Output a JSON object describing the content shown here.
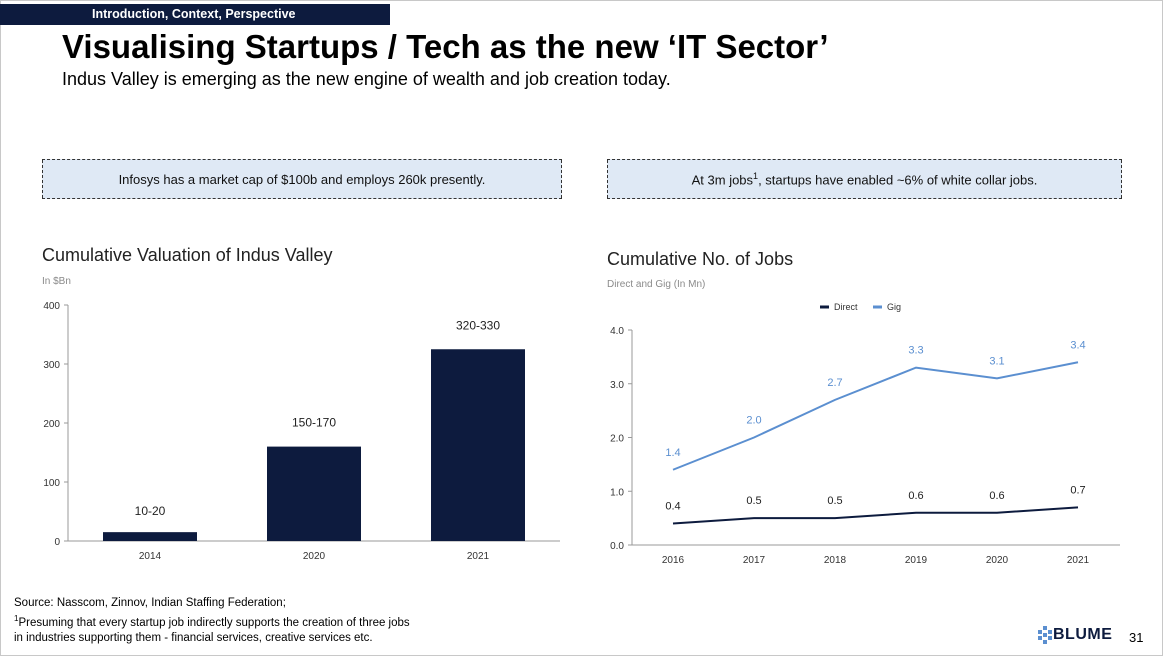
{
  "header": {
    "section_tag": "Introduction, Context, Perspective",
    "title": "Visualising Startups / Tech as the new ‘IT Sector’",
    "subtitle": "Indus Valley is emerging as the new engine of wealth and job creation today."
  },
  "callouts": {
    "left": "Infosys has a market cap of $100b and employs 260k presently.",
    "right_pre": "At 3m jobs",
    "right_sup": "1",
    "right_post": ", startups have enabled ~6% of white collar jobs."
  },
  "chart_data": [
    {
      "type": "bar",
      "title": "Cumulative Valuation of Indus Valley",
      "subtitle": "In $Bn",
      "categories": [
        "2014",
        "2020",
        "2021"
      ],
      "values": [
        15,
        160,
        325
      ],
      "data_labels": [
        "10-20",
        "150-170",
        "320-330"
      ],
      "ylim": [
        0,
        400
      ],
      "yticks": [
        "0",
        "100",
        "200",
        "300",
        "400"
      ],
      "color": "#0d1b3e",
      "grid": false
    },
    {
      "type": "line",
      "title": "Cumulative No. of Jobs",
      "subtitle": "Direct and Gig (In Mn)",
      "x": [
        "2016",
        "2017",
        "2018",
        "2019",
        "2020",
        "2021"
      ],
      "series": [
        {
          "name": "Direct",
          "values": [
            0.4,
            0.5,
            0.5,
            0.6,
            0.6,
            0.7
          ],
          "labels": [
            "0.4",
            "0.5",
            "0.5",
            "0.6",
            "0.6",
            "0.7"
          ],
          "color": "#0d1b3e"
        },
        {
          "name": "Gig",
          "values": [
            1.4,
            2.0,
            2.7,
            3.3,
            3.1,
            3.4
          ],
          "labels": [
            "1.4",
            "2.0",
            "2.7",
            "3.3",
            "3.1",
            "3.4"
          ],
          "color": "#5b8fd0"
        }
      ],
      "ylim": [
        0,
        4
      ],
      "yticks": [
        "0.0",
        "1.0",
        "2.0",
        "3.0",
        "4.0"
      ],
      "legend": "top-right",
      "grid": false
    }
  ],
  "footer": {
    "source": "Source: Nasscom, Zinnov, Indian Staffing Federation;",
    "note_sup": "1",
    "note_line1": "Presuming that every startup job indirectly supports the creation of three jobs",
    "note_line2": "in industries supporting them - financial services, creative services etc.",
    "brand": "BLUME",
    "page_number": "31"
  }
}
